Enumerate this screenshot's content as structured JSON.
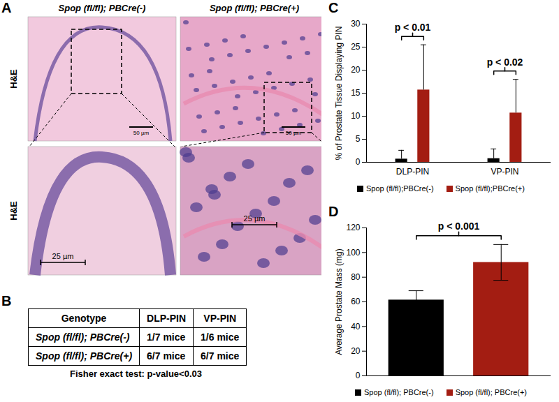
{
  "panel_labels": [
    "A",
    "B",
    "C",
    "D"
  ],
  "histology": {
    "columns": [
      "Spop (fl/fl); PBCre(-)",
      "Spop (fl/fl); PBCre(+)"
    ],
    "row_labels": [
      "H&E",
      "H&E"
    ],
    "scale_bars": [
      [
        "50 µm",
        "50 µm"
      ],
      [
        "25 µm",
        "25 µm"
      ]
    ]
  },
  "table": {
    "header": [
      "Genotype",
      "DLP-PIN",
      "VP-PIN"
    ],
    "rows": [
      [
        "Spop (fl/fl); PBCre(-)",
        "1/7 mice",
        "1/6 mice"
      ],
      [
        "Spop (fl/fl); PBCre(+)",
        "6/7 mice",
        "6/7 mice"
      ]
    ],
    "caption": "Fisher exact test: p-value<0.03"
  },
  "chart_data": [
    {
      "type": "bar",
      "y_label": "% of Prostate Tissue Displaying PIN",
      "categories": [
        "DLP-PIN",
        "VP-PIN"
      ],
      "series": [
        {
          "name": "Spop (fl/fl);PBCre(-)",
          "color": "#000000",
          "values": [
            0.7,
            0.8
          ],
          "errors_upper": [
            1.9,
            2.1
          ]
        },
        {
          "name": "Spop (fl/fl);PBCre(+)",
          "color": "#a31d12",
          "values": [
            15.7,
            10.7
          ],
          "errors_upper": [
            9.8,
            7.3
          ]
        }
      ],
      "annotations": [
        "p < 0.01",
        "p < 0.02"
      ],
      "ylim": [
        0,
        30
      ],
      "yticks": [
        0,
        5,
        10,
        15,
        20,
        25,
        30
      ],
      "legend": "bottom"
    },
    {
      "type": "bar",
      "y_label": "Average Prostate Mass (mg)",
      "categories": [
        null
      ],
      "series": [
        {
          "name": "Spop (fl/fl); PBCre(-)",
          "color": "#000000",
          "values": [
            61.5
          ],
          "errors": [
            7.5
          ]
        },
        {
          "name": "Spop (fl/fl); PBCre(+)",
          "color": "#a31d12",
          "values": [
            92
          ],
          "errors": [
            14.5
          ]
        }
      ],
      "annotations": [
        "p < 0.001"
      ],
      "ylim": [
        0,
        120
      ],
      "yticks": [
        0,
        20,
        40,
        60,
        80,
        100,
        120
      ],
      "legend": "bottom",
      "tick_labels": "y"
    }
  ]
}
